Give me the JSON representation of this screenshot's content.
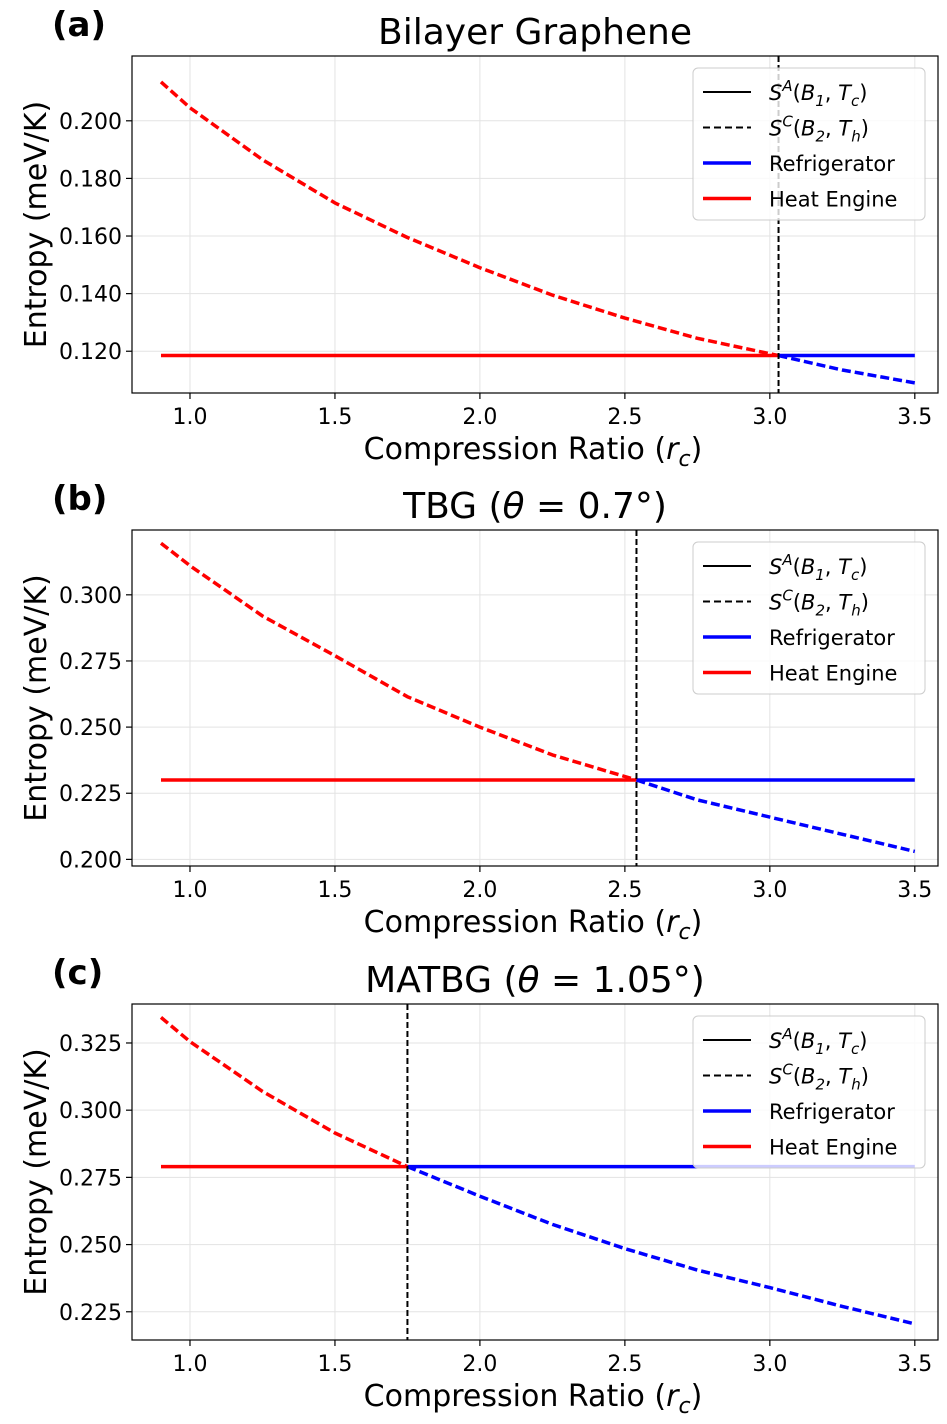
{
  "chart_data": [
    {
      "type": "line",
      "panel_label": "(a)",
      "title": "Bilayer Graphene",
      "xlabel": "Compression Ratio (r_c)",
      "ylabel": "Entropy (meV/K)",
      "xlim": [
        0.8,
        3.58
      ],
      "ylim": [
        0.1055,
        0.2225
      ],
      "xticks": [
        1.0,
        1.5,
        2.0,
        2.5,
        3.0,
        3.5
      ],
      "xtick_labels": [
        "1.0",
        "1.5",
        "2.0",
        "2.5",
        "3.0",
        "3.5"
      ],
      "yticks": [
        0.12,
        0.14,
        0.16,
        0.18,
        0.2
      ],
      "ytick_labels": [
        "0.120",
        "0.140",
        "0.160",
        "0.180",
        "0.200"
      ],
      "grid": true,
      "legend_position": "top-right",
      "crossover_rc": 3.03,
      "SA_entropy": 0.1185,
      "SC_curve": {
        "x": [
          0.9,
          1.0,
          1.25,
          1.5,
          1.75,
          2.0,
          2.25,
          2.5,
          2.75,
          3.03,
          3.25,
          3.5
        ],
        "y": [
          0.2135,
          0.2045,
          0.1865,
          0.1715,
          0.1595,
          0.149,
          0.1395,
          0.1315,
          0.1245,
          0.1185,
          0.1135,
          0.109
        ]
      },
      "series": [
        {
          "name": "S^A(B_1, T_c)",
          "color": "#000000",
          "style": "solid"
        },
        {
          "name": "S^C(B_2, T_h)",
          "color": "#000000",
          "style": "dashed"
        },
        {
          "name": "Refrigerator",
          "color": "#0000ff",
          "style": "solid"
        },
        {
          "name": "Heat Engine",
          "color": "#ff0000",
          "style": "solid"
        }
      ]
    },
    {
      "type": "line",
      "panel_label": "(b)",
      "title": "TBG (θ = 0.7°)",
      "xlabel": "Compression Ratio (r_c)",
      "ylabel": "Entropy (meV/K)",
      "xlim": [
        0.8,
        3.58
      ],
      "ylim": [
        0.1975,
        0.3245
      ],
      "xticks": [
        1.0,
        1.5,
        2.0,
        2.5,
        3.0,
        3.5
      ],
      "xtick_labels": [
        "1.0",
        "1.5",
        "2.0",
        "2.5",
        "3.0",
        "3.5"
      ],
      "yticks": [
        0.2,
        0.225,
        0.25,
        0.275,
        0.3
      ],
      "ytick_labels": [
        "0.200",
        "0.225",
        "0.250",
        "0.275",
        "0.300"
      ],
      "grid": true,
      "legend_position": "top-right",
      "crossover_rc": 2.54,
      "SA_entropy": 0.23,
      "SC_curve": {
        "x": [
          0.9,
          1.0,
          1.25,
          1.5,
          1.75,
          2.0,
          2.25,
          2.54,
          2.75,
          3.0,
          3.25,
          3.5
        ],
        "y": [
          0.3195,
          0.311,
          0.292,
          0.277,
          0.2615,
          0.25,
          0.2395,
          0.23,
          0.2225,
          0.216,
          0.2095,
          0.203
        ]
      },
      "series": [
        {
          "name": "S^A(B_1, T_c)",
          "color": "#000000",
          "style": "solid"
        },
        {
          "name": "S^C(B_2, T_h)",
          "color": "#000000",
          "style": "dashed"
        },
        {
          "name": "Refrigerator",
          "color": "#0000ff",
          "style": "solid"
        },
        {
          "name": "Heat Engine",
          "color": "#ff0000",
          "style": "solid"
        }
      ]
    },
    {
      "type": "line",
      "panel_label": "(c)",
      "title": "MATBG (θ = 1.05°)",
      "xlabel": "Compression Ratio (r_c)",
      "ylabel": "Entropy (meV/K)",
      "xlim": [
        0.8,
        3.58
      ],
      "ylim": [
        0.2145,
        0.3395
      ],
      "xticks": [
        1.0,
        1.5,
        2.0,
        2.5,
        3.0,
        3.5
      ],
      "xtick_labels": [
        "1.0",
        "1.5",
        "2.0",
        "2.5",
        "3.0",
        "3.5"
      ],
      "yticks": [
        0.225,
        0.25,
        0.275,
        0.3,
        0.325
      ],
      "ytick_labels": [
        "0.225",
        "0.250",
        "0.275",
        "0.300",
        "0.325"
      ],
      "grid": true,
      "legend_position": "top-right",
      "crossover_rc": 1.75,
      "SA_entropy": 0.279,
      "SC_curve": {
        "x": [
          0.9,
          1.0,
          1.25,
          1.5,
          1.75,
          2.0,
          2.25,
          2.5,
          2.75,
          3.0,
          3.25,
          3.5
        ],
        "y": [
          0.3345,
          0.3255,
          0.307,
          0.2915,
          0.279,
          0.268,
          0.2575,
          0.2485,
          0.2405,
          0.234,
          0.227,
          0.2205
        ]
      },
      "series": [
        {
          "name": "S^A(B_1, T_c)",
          "color": "#000000",
          "style": "solid"
        },
        {
          "name": "S^C(B_2, T_h)",
          "color": "#000000",
          "style": "dashed"
        },
        {
          "name": "Refrigerator",
          "color": "#0000ff",
          "style": "solid"
        },
        {
          "name": "Heat Engine",
          "color": "#ff0000",
          "style": "solid"
        }
      ]
    }
  ]
}
